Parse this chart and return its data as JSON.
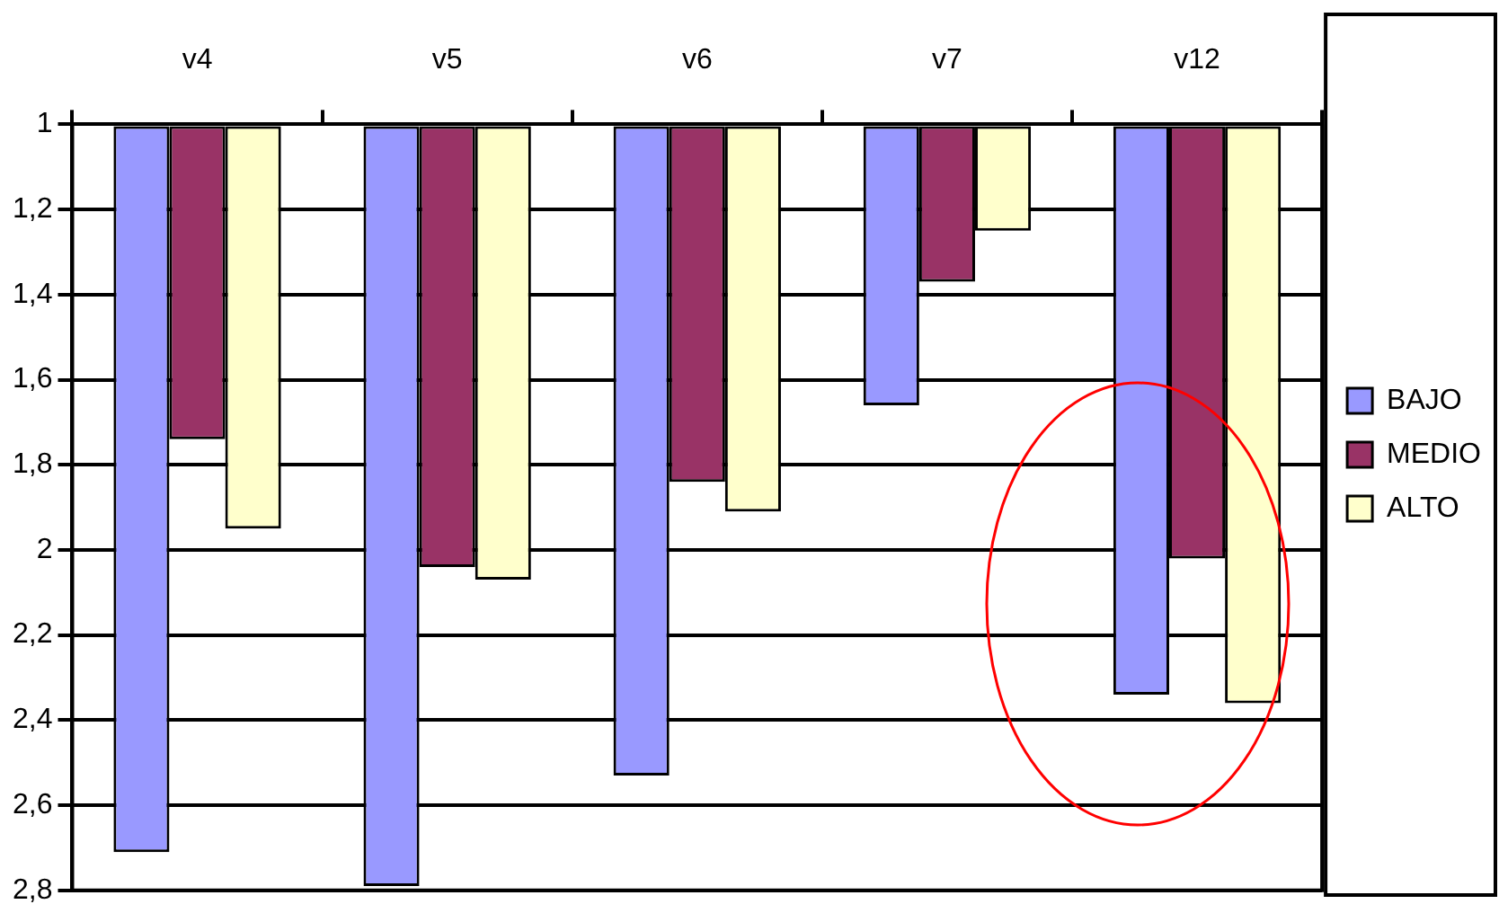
{
  "chart_data": {
    "type": "bar",
    "categories": [
      "v4",
      "v5",
      "v6",
      "v7",
      "v12"
    ],
    "series": [
      {
        "name": "BAJO",
        "color": "#9999ff",
        "values": [
          2.71,
          2.79,
          2.53,
          1.66,
          2.34
        ]
      },
      {
        "name": "MEDIO",
        "color": "#993366",
        "values": [
          1.74,
          2.04,
          1.84,
          1.37,
          2.02
        ]
      },
      {
        "name": "ALTO",
        "color": "#ffffcc",
        "values": [
          1.95,
          2.07,
          1.91,
          1.25,
          2.36
        ]
      }
    ],
    "ylim": [
      2.8,
      1
    ],
    "yticks": [
      {
        "value": 1,
        "label": "1"
      },
      {
        "value": 1.2,
        "label": "1,2"
      },
      {
        "value": 1.4,
        "label": "1,4"
      },
      {
        "value": 1.6,
        "label": "1,6"
      },
      {
        "value": 1.8,
        "label": "1,8"
      },
      {
        "value": 2,
        "label": "2"
      },
      {
        "value": 2.2,
        "label": "2,2"
      },
      {
        "value": 2.4,
        "label": "2,4"
      },
      {
        "value": 2.6,
        "label": "2,6"
      },
      {
        "value": 2.8,
        "label": "2,8"
      }
    ],
    "grid": "y",
    "legend": "right"
  }
}
